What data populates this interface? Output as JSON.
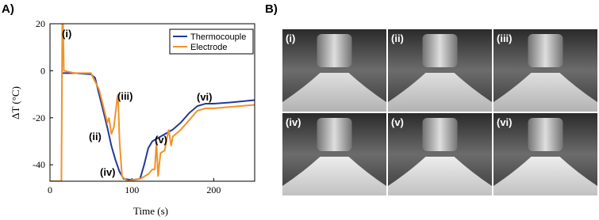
{
  "panel_labels": [
    "A)",
    "B)"
  ],
  "chart_data": {
    "type": "line",
    "xlabel": "Time (s)",
    "ylabel": "ΔT (°C)",
    "xlim": [
      0,
      250
    ],
    "ylim": [
      -47,
      20
    ],
    "xticks": [
      0,
      100,
      200
    ],
    "yticks": [
      -40,
      -20,
      0,
      20
    ],
    "legend": "upper right",
    "series": [
      {
        "name": "Thermocouple",
        "color": "#1f3a9a",
        "x": [
          15,
          30,
          50,
          55,
          60,
          65,
          70,
          75,
          80,
          85,
          90,
          100,
          110,
          115,
          120,
          125,
          130,
          140,
          150,
          160,
          170,
          180,
          190,
          200,
          220,
          250
        ],
        "values": [
          -1,
          -1,
          -1.5,
          -3,
          -10,
          -17,
          -24,
          -32,
          -38,
          -43,
          -46,
          -46.5,
          -46,
          -40,
          -33,
          -30,
          -29,
          -27,
          -25,
          -22,
          -18,
          -15,
          -14,
          -14,
          -13.5,
          -12.5
        ]
      },
      {
        "name": "Electrode",
        "color": "#f0922a",
        "x": [
          0,
          14,
          15,
          16,
          17,
          30,
          50,
          60,
          65,
          70,
          72,
          75,
          78,
          80,
          82,
          83,
          85,
          88,
          95,
          110,
          115,
          120,
          125,
          128,
          130,
          132,
          135,
          140,
          145,
          148,
          150,
          160,
          170,
          180,
          190,
          200,
          250
        ],
        "values": [
          -47,
          -47,
          20,
          20,
          0,
          -1,
          -1,
          -8,
          -15,
          -22,
          -20,
          -27,
          -24,
          -18,
          -12,
          -10,
          -30,
          -45,
          -47,
          -46,
          -45,
          -44,
          -42,
          -42,
          -30,
          -45,
          -35,
          -34,
          -25,
          -32,
          -28,
          -25,
          -21,
          -17,
          -16,
          -16,
          -14.5
        ]
      }
    ],
    "annotations": [
      "(i)",
      "(ii)",
      "(iii)",
      "(iv)",
      "(v)",
      "(vi)"
    ]
  },
  "photo_labels": [
    "(i)",
    "(ii)",
    "(iii)",
    "(iv)",
    "(v)",
    "(vi)"
  ]
}
